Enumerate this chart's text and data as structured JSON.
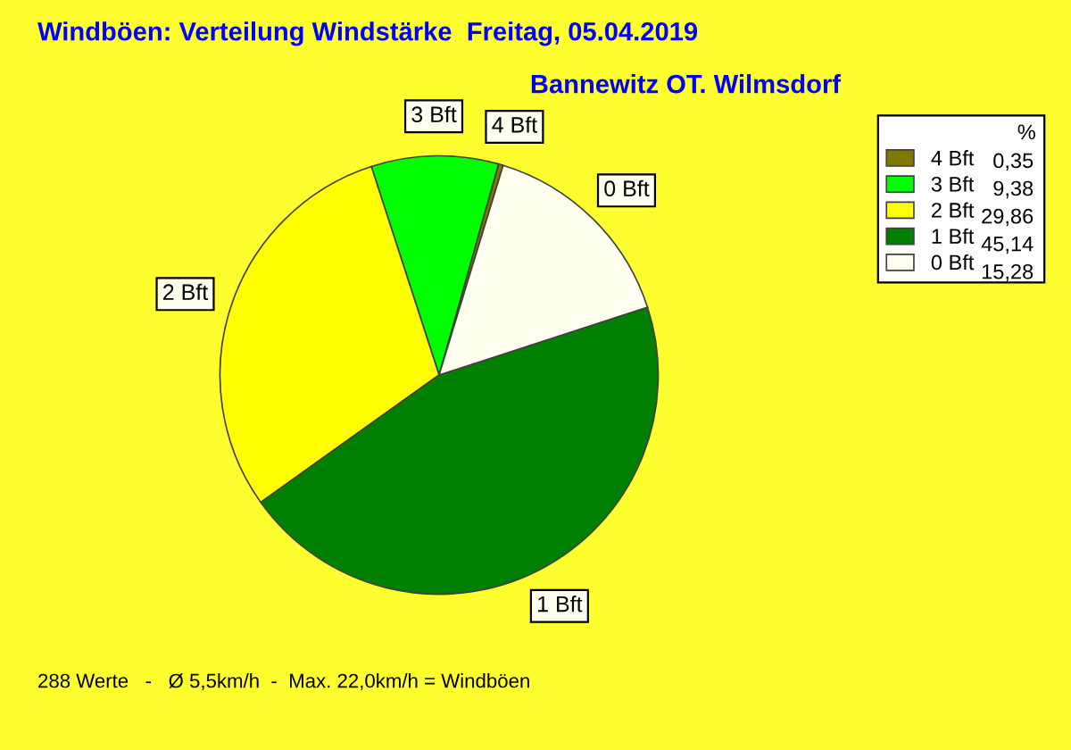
{
  "chart_data": {
    "type": "pie",
    "title": "Windböen: Verteilung Windstärke  Freitag, 05.04.2019",
    "subtitle": "Bannewitz OT. Wilmsdorf",
    "categories": [
      "4 Bft",
      "3 Bft",
      "2 Bft",
      "1 Bft",
      "0 Bft"
    ],
    "values": [
      0.35,
      9.38,
      29.86,
      45.14,
      15.28
    ],
    "value_labels": [
      "0,35",
      "9,38",
      "29,86",
      "45,14",
      "15,28"
    ],
    "colors": [
      "#807800",
      "#00ff00",
      "#ffff00",
      "#008000",
      "#fffff0"
    ],
    "legend": "top right",
    "legend_title": "%",
    "annotations": [
      "288 Werte   -   Ø 5,5km/h  -  Max. 22,0km/h = Windböen"
    ]
  }
}
